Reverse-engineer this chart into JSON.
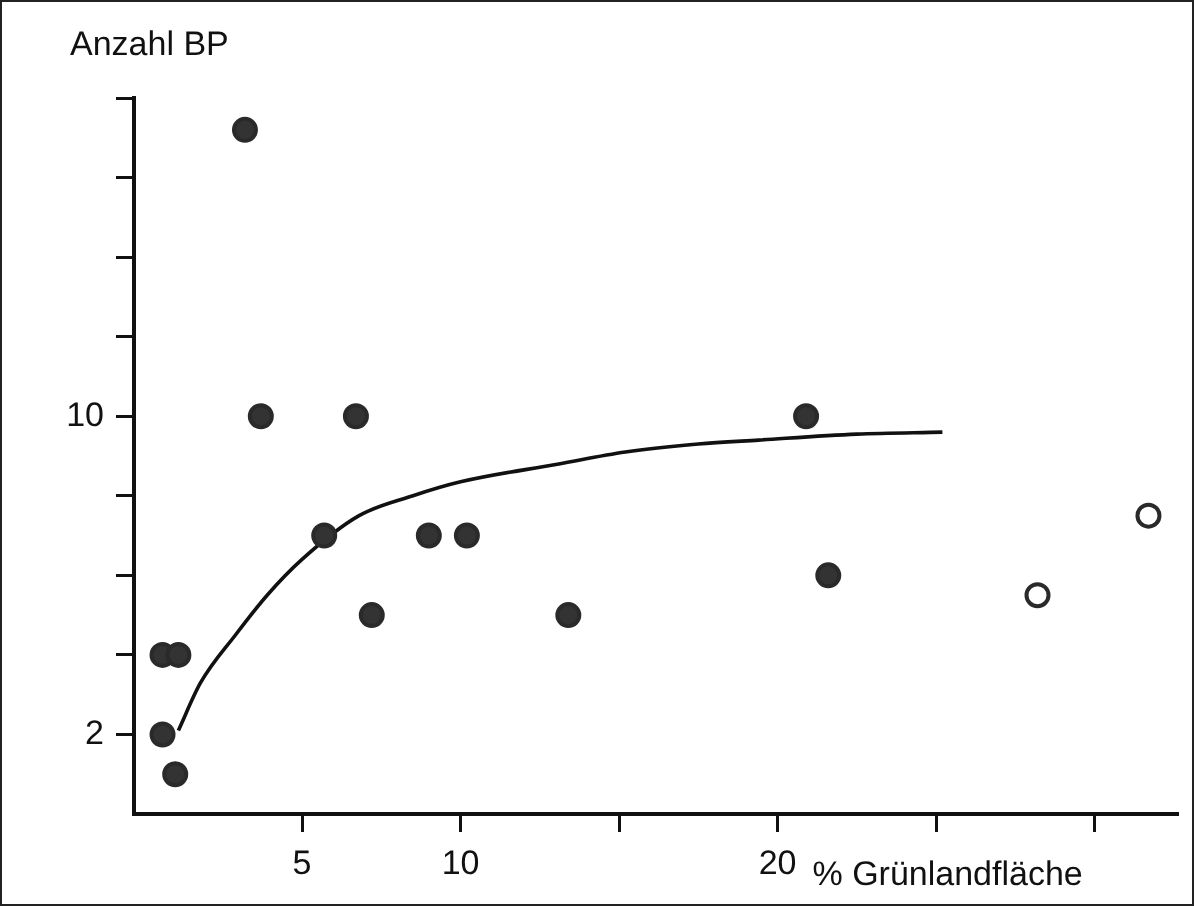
{
  "chart_data": {
    "type": "scatter",
    "xlabel": "% Grünlandfläche",
    "ylabel": "Anzahl BP",
    "xlim": [
      -0.3,
      32.6
    ],
    "ylim": [
      0,
      18
    ],
    "xticks": [
      5,
      10,
      {
        "value": 15,
        "label": null
      },
      20,
      {
        "value": 25,
        "label": null
      },
      {
        "value": 30,
        "label": null
      }
    ],
    "yticks": [
      2,
      {
        "value": 4,
        "label": null
      },
      {
        "value": 6,
        "label": null
      },
      {
        "value": 8,
        "label": null
      },
      10,
      {
        "value": 12,
        "label": null
      },
      {
        "value": 14,
        "label": null
      },
      {
        "value": 16,
        "label": null
      },
      {
        "value": 18,
        "label": null
      }
    ],
    "grid": false,
    "legend": false,
    "marker": "circle",
    "series": [
      {
        "color": "#333333",
        "x": [
          3.2,
          3.7,
          6.7,
          5.7,
          9.0,
          10.2,
          7.2,
          0.6,
          1.1,
          0.6,
          1.0,
          13.4,
          20.9,
          21.6
        ],
        "values": [
          17.2,
          10,
          10,
          7,
          7,
          7,
          5,
          4,
          4,
          2,
          1,
          5,
          10,
          6
        ]
      },
      {
        "color": "#ffffff",
        "x": [
          28.2,
          31.7
        ],
        "values": [
          5.5,
          7.5
        ]
      },
      {
        "type": "line",
        "color": "#111111",
        "marker": "none",
        "x": [
          1.1,
          1.8,
          2.9,
          3.9,
          5.0,
          6.8,
          8.5,
          10,
          13.1,
          15.2,
          17.5,
          19.4,
          22.5,
          25.2
        ],
        "values": [
          2.1,
          3.3,
          4.5,
          5.5,
          6.4,
          7.5,
          8,
          8.35,
          8.8,
          9.1,
          9.3,
          9.4,
          9.55,
          9.6
        ]
      }
    ]
  }
}
